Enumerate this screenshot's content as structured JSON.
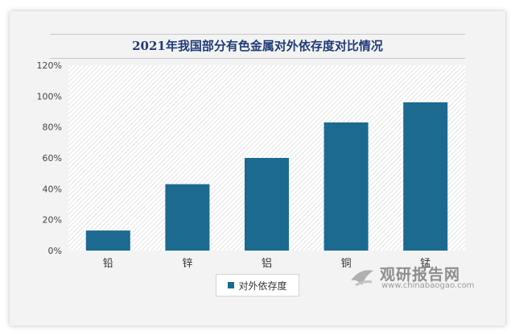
{
  "chart_data": {
    "type": "bar",
    "title": "2021年我国部分有色金属对外依存度对比情况",
    "categories": [
      "铅",
      "锌",
      "铝",
      "铜",
      "锰"
    ],
    "series": [
      {
        "name": "对外依存度",
        "values": [
          13,
          43,
          60,
          83,
          96
        ]
      }
    ],
    "ylim": [
      0,
      120
    ],
    "yticks": [
      "0%",
      "20%",
      "40%",
      "60%",
      "80%",
      "100%",
      "120%"
    ],
    "ytick_values": [
      0,
      20,
      40,
      60,
      80,
      100,
      120
    ],
    "grid": "diagonal-hatch",
    "legend_position": "bottom",
    "colors": {
      "bar": "#1c6a90",
      "title": "#1f3c78"
    }
  },
  "watermark": {
    "name": "观研报告网",
    "url": "www.chinabaogao.com"
  }
}
